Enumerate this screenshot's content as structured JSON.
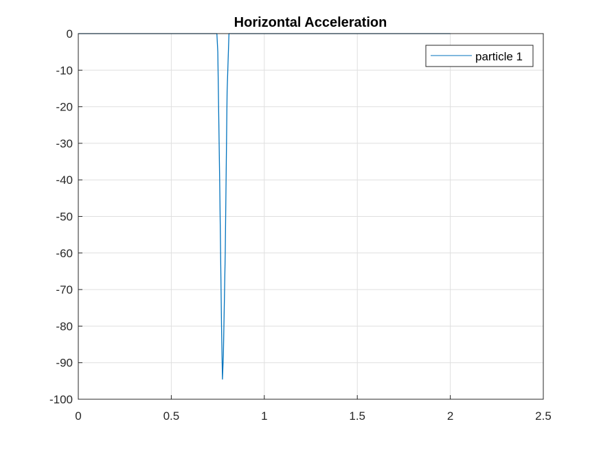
{
  "chart_data": {
    "type": "line",
    "title": "Horizontal Acceleration",
    "xlabel": "",
    "ylabel": "",
    "xlim": [
      0,
      2.5
    ],
    "ylim": [
      -100,
      0
    ],
    "xticks": [
      0,
      0.5,
      1,
      1.5,
      2,
      2.5
    ],
    "xtick_labels": [
      "0",
      "0.5",
      "1",
      "1.5",
      "2",
      "2.5"
    ],
    "yticks": [
      0,
      -10,
      -20,
      -30,
      -40,
      -50,
      -60,
      -70,
      -80,
      -90,
      -100
    ],
    "ytick_labels": [
      "0",
      "-10",
      "-20",
      "-30",
      "-40",
      "-50",
      "-60",
      "-70",
      "-80",
      "-90",
      "-100"
    ],
    "grid": true,
    "legend_position": "top-right",
    "series": [
      {
        "name": "particle 1",
        "color": "#0072bd",
        "x": [
          0,
          0.745,
          0.75,
          0.76,
          0.77,
          0.775,
          0.78,
          0.79,
          0.8,
          0.81,
          0.82,
          2.0
        ],
        "y": [
          0,
          0,
          -5,
          -40,
          -80,
          -94.5,
          -88,
          -60,
          -16,
          0,
          0,
          0
        ]
      }
    ]
  }
}
